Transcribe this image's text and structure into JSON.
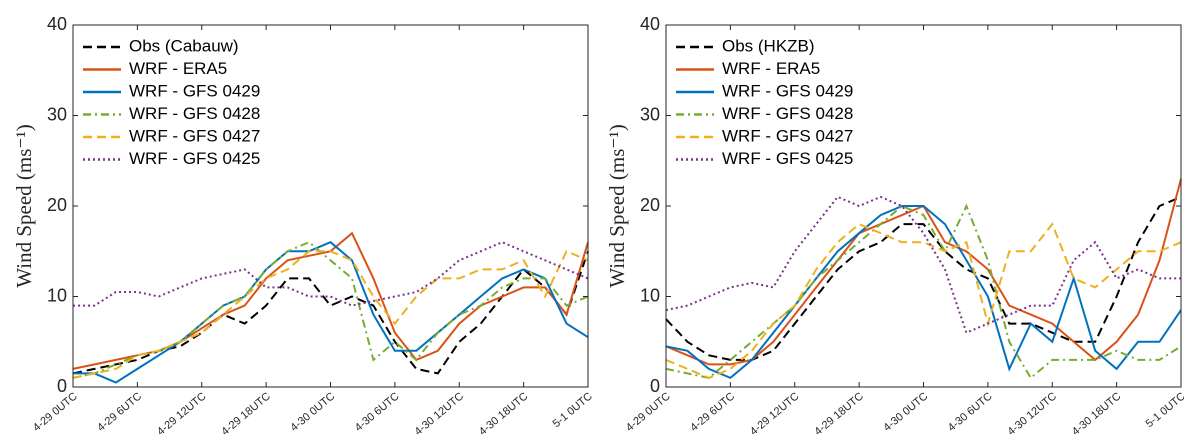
{
  "chart_data": [
    {
      "type": "line",
      "y_label": "Wind Speed (ms⁻¹)",
      "x": [
        0,
        2,
        4,
        6,
        8,
        10,
        12,
        14,
        16,
        18,
        20,
        22,
        24,
        26,
        28,
        30,
        32,
        34,
        36,
        38,
        40,
        42,
        44,
        46,
        48
      ],
      "xlim": [
        0,
        48
      ],
      "xticks": [
        {
          "value": 0,
          "label": "4-29 0UTC"
        },
        {
          "value": 6,
          "label": "4-29 6UTC"
        },
        {
          "value": 12,
          "label": "4-29 12UTC"
        },
        {
          "value": 18,
          "label": "4-29 18UTC"
        },
        {
          "value": 24,
          "label": "4-30 0UTC"
        },
        {
          "value": 30,
          "label": "4-30 6UTC"
        },
        {
          "value": 36,
          "label": "4-30 12UTC"
        },
        {
          "value": 42,
          "label": "4-30 18UTC"
        },
        {
          "value": 48,
          "label": "5-1 0UTC"
        }
      ],
      "ylim": [
        0,
        40
      ],
      "yticks": [
        0,
        10,
        20,
        30,
        40
      ],
      "legend": "upper left",
      "series": [
        {
          "name": "Obs (Cabauw)",
          "color": "#000000",
          "style": "dashed",
          "values": [
            1.5,
            2,
            2.5,
            3,
            4,
            4.5,
            6,
            8,
            7,
            9,
            12,
            12,
            9,
            10,
            9,
            5,
            2,
            1.5,
            5,
            7,
            10,
            13,
            11,
            8,
            15
          ]
        },
        {
          "name": "WRF - ERA5",
          "color": "#d95319",
          "style": "solid",
          "values": [
            2,
            2.5,
            3,
            3.5,
            4,
            5,
            6.5,
            8,
            9,
            12,
            14,
            14.5,
            15,
            17,
            12,
            6,
            3,
            4,
            7,
            9,
            10,
            11,
            11,
            8,
            16
          ]
        },
        {
          "name": "WRF - GFS 0429",
          "color": "#0072bd",
          "style": "solid",
          "values": [
            1.5,
            1.5,
            0.5,
            2,
            3.5,
            5,
            7,
            9,
            10,
            13,
            15,
            15,
            16,
            14,
            8,
            4,
            4,
            6,
            8,
            10,
            12,
            13,
            12,
            7,
            5.5
          ]
        },
        {
          "name": "WRF - GFS 0428",
          "color": "#77ac30",
          "style": "dashdot",
          "values": [
            1,
            1.5,
            2.5,
            3.5,
            4,
            5,
            7,
            9,
            10,
            13,
            15,
            16,
            14,
            12,
            3,
            5,
            3,
            6,
            8,
            9,
            11,
            12,
            12,
            9,
            10
          ]
        },
        {
          "name": "WRF - GFS 0427",
          "color": "#edb120",
          "style": "dashed",
          "values": [
            1,
            1.5,
            2,
            3.5,
            4,
            5,
            6,
            8,
            10,
            12,
            13,
            15,
            15,
            14,
            10,
            7,
            10,
            12,
            12,
            13,
            13,
            14,
            10,
            15,
            14
          ]
        },
        {
          "name": "WRF - GFS 0425",
          "color": "#7e2f8e",
          "style": "dotted",
          "values": [
            9,
            9,
            10.5,
            10.5,
            10,
            11,
            12,
            12.5,
            13,
            11,
            11,
            10,
            10,
            9,
            9.5,
            10,
            10.5,
            12,
            14,
            15,
            16,
            15,
            14,
            13,
            12
          ]
        }
      ]
    },
    {
      "type": "line",
      "y_label": "Wind Speed (ms⁻¹)",
      "x": [
        0,
        2,
        4,
        6,
        8,
        10,
        12,
        14,
        16,
        18,
        20,
        22,
        24,
        26,
        28,
        30,
        32,
        34,
        36,
        38,
        40,
        42,
        44,
        46,
        48
      ],
      "xlim": [
        0,
        48
      ],
      "xticks": [
        {
          "value": 0,
          "label": "4-29 0UTC"
        },
        {
          "value": 6,
          "label": "4-29 6UTC"
        },
        {
          "value": 12,
          "label": "4-29 12UTC"
        },
        {
          "value": 18,
          "label": "4-29 18UTC"
        },
        {
          "value": 24,
          "label": "4-30 0UTC"
        },
        {
          "value": 30,
          "label": "4-30 6UTC"
        },
        {
          "value": 36,
          "label": "4-30 12UTC"
        },
        {
          "value": 42,
          "label": "4-30 18UTC"
        },
        {
          "value": 48,
          "label": "5-1 0UTC"
        }
      ],
      "ylim": [
        0,
        40
      ],
      "yticks": [
        0,
        10,
        20,
        30,
        40
      ],
      "legend": "upper left",
      "series": [
        {
          "name": "Obs (HKZB)",
          "color": "#000000",
          "style": "dashed",
          "values": [
            7.5,
            5,
            3.5,
            3,
            3,
            4,
            7,
            10,
            13,
            15,
            16,
            18,
            18,
            15,
            13,
            12,
            7,
            7,
            6,
            5,
            5,
            10,
            16,
            20,
            21
          ]
        },
        {
          "name": "WRF - ERA5",
          "color": "#d95319",
          "style": "solid",
          "values": [
            4.5,
            3.5,
            2.5,
            2.5,
            3,
            5,
            8,
            11,
            14,
            17,
            18,
            19,
            20,
            16,
            15,
            13,
            9,
            8,
            7,
            5,
            3,
            5,
            8,
            14,
            23
          ]
        },
        {
          "name": "WRF - GFS 0429",
          "color": "#0072bd",
          "style": "solid",
          "values": [
            4.5,
            4,
            2,
            1,
            3,
            6,
            9,
            12,
            15,
            17,
            19,
            20,
            20,
            18,
            14,
            10,
            2,
            7,
            5,
            12,
            4,
            2,
            5,
            5,
            8.5
          ]
        },
        {
          "name": "WRF - GFS 0428",
          "color": "#77ac30",
          "style": "dashdot",
          "values": [
            2,
            1.5,
            1,
            3,
            5,
            7,
            9,
            12,
            14,
            16,
            18,
            20,
            19,
            15,
            20,
            14,
            5,
            1,
            3,
            3,
            3,
            4,
            3,
            3,
            4.5
          ]
        },
        {
          "name": "WRF - GFS 0427",
          "color": "#edb120",
          "style": "dashed",
          "values": [
            3,
            2,
            1,
            2,
            4,
            7,
            9,
            13,
            16,
            18,
            17,
            16,
            16,
            15,
            16,
            7,
            15,
            15,
            18,
            12,
            11,
            13,
            15,
            15,
            16
          ]
        },
        {
          "name": "WRF - GFS 0425",
          "color": "#7e2f8e",
          "style": "dotted",
          "values": [
            8.5,
            9,
            10,
            11,
            11.5,
            11,
            15,
            18,
            21,
            20,
            21,
            20,
            17,
            13,
            6,
            7,
            8,
            9,
            9,
            14,
            16,
            12,
            13,
            12,
            12
          ]
        }
      ]
    }
  ]
}
